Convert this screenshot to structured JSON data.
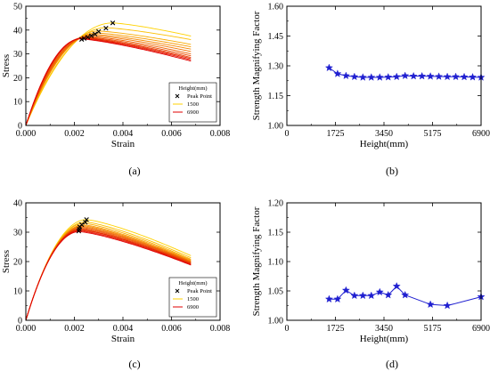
{
  "chart_data": [
    {
      "panel": "(a)",
      "type": "line",
      "xlabel": "Strain",
      "ylabel": "Stress",
      "xlim": [
        0,
        0.008
      ],
      "ylim": [
        0,
        50
      ],
      "xticks": [
        "0.000",
        "0.002",
        "0.004",
        "0.006",
        "0.008"
      ],
      "yticks": [
        "0",
        "10",
        "20",
        "30",
        "40",
        "50"
      ],
      "legend": {
        "title": "Height(mm)",
        "placement": "bottom-right",
        "entries": [
          {
            "label": "Peak Point",
            "marker": "x",
            "color": "#000000"
          },
          {
            "label": "1500",
            "color": "#ffd200"
          },
          {
            "label": "6900",
            "color": "#e00000"
          }
        ]
      },
      "series_shape": {
        "count": 12,
        "rise_end": 0.0017,
        "end_x": 0.0068,
        "peak_x": [
          0.00358,
          0.0033,
          0.003,
          0.0029,
          0.0028,
          0.0027,
          0.0026,
          0.0025,
          0.0024,
          0.00235,
          0.0023,
          0.00225
        ],
        "peak_y": [
          43.0,
          41.0,
          39.6,
          38.8,
          38.2,
          37.8,
          37.4,
          37.1,
          36.9,
          36.7,
          36.5,
          36.3
        ],
        "end_y": [
          37.5,
          36.0,
          34.0,
          33.0,
          32.0,
          31.0,
          30.0,
          29.2,
          28.5,
          28.0,
          27.5,
          27.0
        ]
      },
      "peak_points": [
        [
          0.00358,
          43.0
        ],
        [
          0.0033,
          40.8
        ],
        [
          0.003,
          39.4
        ],
        [
          0.00285,
          38.3
        ],
        [
          0.0027,
          37.6
        ],
        [
          0.00255,
          37.0
        ],
        [
          0.0024,
          36.5
        ],
        [
          0.0023,
          36.1
        ]
      ]
    },
    {
      "panel": "(b)",
      "type": "line",
      "xlabel": "Height(mm)",
      "ylabel": "Strength Magnifying Factor",
      "xlim": [
        0,
        6900
      ],
      "ylim": [
        1.0,
        1.6
      ],
      "xticks": [
        "0",
        "1725",
        "3450",
        "5175",
        "6900"
      ],
      "yticks": [
        "1.00",
        "1.15",
        "1.30",
        "1.45",
        "1.60"
      ],
      "marker": "star",
      "color": "#1f1fd0",
      "x": [
        1500,
        1800,
        2100,
        2400,
        2700,
        3000,
        3300,
        3600,
        3900,
        4200,
        4500,
        4800,
        5100,
        5400,
        5700,
        6000,
        6300,
        6600,
        6900
      ],
      "values": [
        1.29,
        1.26,
        1.25,
        1.245,
        1.242,
        1.242,
        1.242,
        1.243,
        1.245,
        1.25,
        1.248,
        1.248,
        1.247,
        1.246,
        1.245,
        1.245,
        1.244,
        1.243,
        1.242
      ]
    },
    {
      "panel": "(c)",
      "type": "line",
      "xlabel": "Strain",
      "ylabel": "Stress",
      "xlim": [
        0,
        0.008
      ],
      "ylim": [
        0,
        40
      ],
      "xticks": [
        "0.000",
        "0.002",
        "0.004",
        "0.006",
        "0.008"
      ],
      "yticks": [
        "0",
        "10",
        "20",
        "30",
        "40"
      ],
      "legend": {
        "title": "Height(mm)",
        "placement": "bottom-right",
        "entries": [
          {
            "label": "Peak Point",
            "marker": "x",
            "color": "#000000"
          },
          {
            "label": "1500",
            "color": "#ffd200"
          },
          {
            "label": "6900",
            "color": "#e00000"
          }
        ]
      },
      "series_shape": {
        "count": 12,
        "rise_end": 0.0015,
        "end_x": 0.0068,
        "peak_x": [
          0.0025,
          0.00245,
          0.0024,
          0.00238,
          0.00235,
          0.00232,
          0.0023,
          0.00228,
          0.00226,
          0.00224,
          0.00222,
          0.0022
        ],
        "peak_y": [
          34.3,
          33.5,
          33.0,
          32.5,
          32.2,
          31.9,
          31.6,
          31.3,
          31.0,
          30.8,
          30.5,
          30.2
        ],
        "end_y": [
          22.0,
          21.3,
          20.8,
          20.5,
          20.2,
          20.0,
          19.8,
          19.6,
          19.4,
          19.2,
          19.0,
          18.8
        ]
      },
      "peak_points": [
        [
          0.0025,
          34.3
        ],
        [
          0.00245,
          33.4
        ],
        [
          0.0023,
          32.6
        ],
        [
          0.00222,
          31.8
        ],
        [
          0.0022,
          31.0
        ],
        [
          0.00218,
          30.4
        ]
      ]
    },
    {
      "panel": "(d)",
      "type": "line",
      "xlabel": "Height(mm)",
      "ylabel": "Strength Magnifying Factor",
      "xlim": [
        0,
        6900
      ],
      "ylim": [
        1.0,
        1.2
      ],
      "xticks": [
        "0",
        "1725",
        "3450",
        "5175",
        "6900"
      ],
      "yticks": [
        "1.00",
        "1.05",
        "1.10",
        "1.15",
        "1.20"
      ],
      "marker": "star",
      "color": "#1f1fd0",
      "x": [
        1500,
        1800,
        2100,
        2400,
        2700,
        3000,
        3300,
        3600,
        3900,
        4200,
        5100,
        5700,
        6900
      ],
      "values": [
        1.036,
        1.036,
        1.051,
        1.042,
        1.042,
        1.042,
        1.048,
        1.043,
        1.058,
        1.043,
        1.027,
        1.025,
        1.04
      ]
    }
  ]
}
